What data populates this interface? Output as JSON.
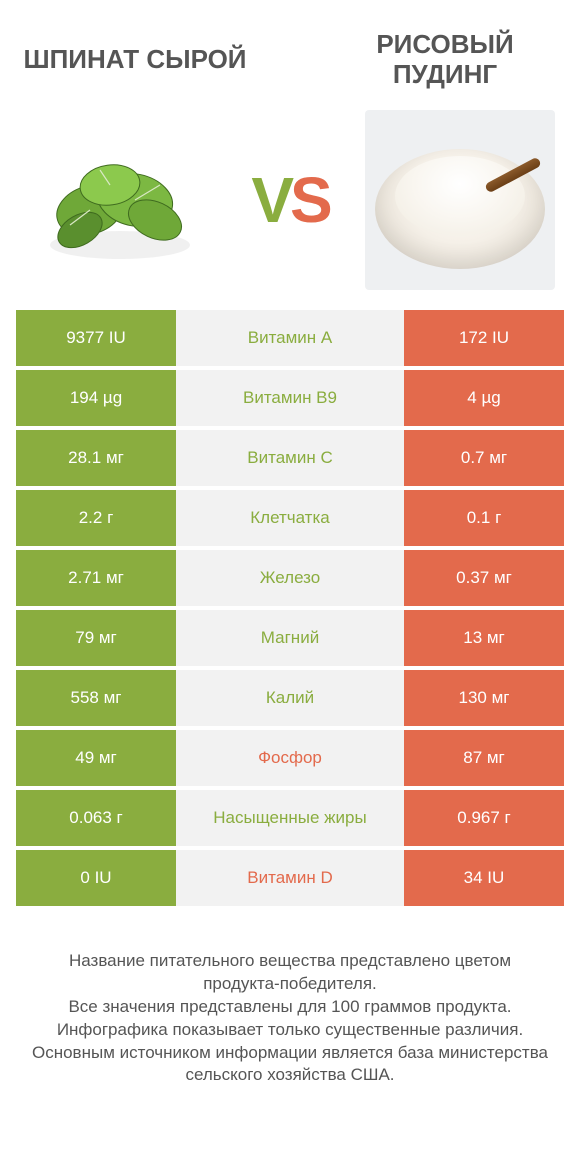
{
  "colors": {
    "green": "#8aad3f",
    "orange": "#e36a4c",
    "mid_bg": "#f2f2f2",
    "text": "#555555"
  },
  "header": {
    "left_title": "ШПИНАТ СЫРОЙ",
    "right_title": "РИСОВЫЙ ПУДИНГ",
    "vs_v": "V",
    "vs_s": "S"
  },
  "rows": [
    {
      "left": "9377 IU",
      "label": "Витамин A",
      "right": "172 IU",
      "winner": "left"
    },
    {
      "left": "194 µg",
      "label": "Витамин B9",
      "right": "4 µg",
      "winner": "left"
    },
    {
      "left": "28.1 мг",
      "label": "Витамин C",
      "right": "0.7 мг",
      "winner": "left"
    },
    {
      "left": "2.2 г",
      "label": "Клетчатка",
      "right": "0.1 г",
      "winner": "left"
    },
    {
      "left": "2.71 мг",
      "label": "Железо",
      "right": "0.37 мг",
      "winner": "left"
    },
    {
      "left": "79 мг",
      "label": "Магний",
      "right": "13 мг",
      "winner": "left"
    },
    {
      "left": "558 мг",
      "label": "Калий",
      "right": "130 мг",
      "winner": "left"
    },
    {
      "left": "49 мг",
      "label": "Фосфор",
      "right": "87 мг",
      "winner": "right"
    },
    {
      "left": "0.063 г",
      "label": "Насыщенные жиры",
      "right": "0.967 г",
      "winner": "left"
    },
    {
      "left": "0 IU",
      "label": "Витамин D",
      "right": "34 IU",
      "winner": "right"
    }
  ],
  "footer": {
    "line1": "Название питательного вещества представлено цветом продукта-победителя.",
    "line2": "Все значения представлены для 100 граммов продукта.",
    "line3": "Инфографика показывает только существенные различия.",
    "line4": "Основным источником информации является база министерства сельского хозяйства США."
  }
}
